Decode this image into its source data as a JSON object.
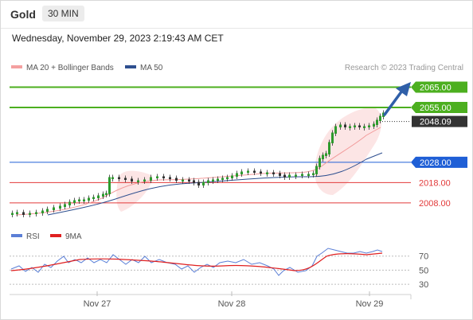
{
  "header": {
    "symbol": "Gold",
    "timeframe": "30 MIN",
    "datetime": "Wednesday, November 29, 2023 2:19:43 AM CET"
  },
  "legend": {
    "ma20": {
      "label": "MA 20 + Bollinger Bands",
      "color": "#f08080"
    },
    "ma50": {
      "label": "MA 50",
      "color": "#2e4f8f"
    },
    "credit": "Research © 2023 Trading Central"
  },
  "rsi_legend": {
    "rsi": {
      "label": "RSI",
      "color": "#5b7fd6"
    },
    "ma9": {
      "label": "9MA",
      "color": "#e02020"
    }
  },
  "chart_data": {
    "type": "candlestick",
    "price_range": [
      2000.5,
      2069.5
    ],
    "x_ticks": [
      "Nov 27",
      "Nov 28",
      "Nov 29"
    ],
    "levels": [
      {
        "value": 2065.0,
        "label": "2065.00",
        "kind": "target",
        "color": "#4caf1f"
      },
      {
        "value": 2055.0,
        "label": "2055.00",
        "kind": "resistance",
        "color": "#4caf1f"
      },
      {
        "value": 2048.09,
        "label": "2048.09",
        "kind": "last-price",
        "color": "#333333"
      },
      {
        "value": 2028.0,
        "label": "2028.00",
        "kind": "pivot",
        "color": "#1f5fd6"
      },
      {
        "value": 2018.0,
        "label": "2018.00",
        "kind": "support",
        "color": "#e23a3a"
      },
      {
        "value": 2008.0,
        "label": "2008.00",
        "kind": "support",
        "color": "#e23a3a"
      }
    ],
    "rsi_range": [
      20,
      90
    ],
    "rsi_levels": [
      "70",
      "50",
      "30"
    ]
  }
}
